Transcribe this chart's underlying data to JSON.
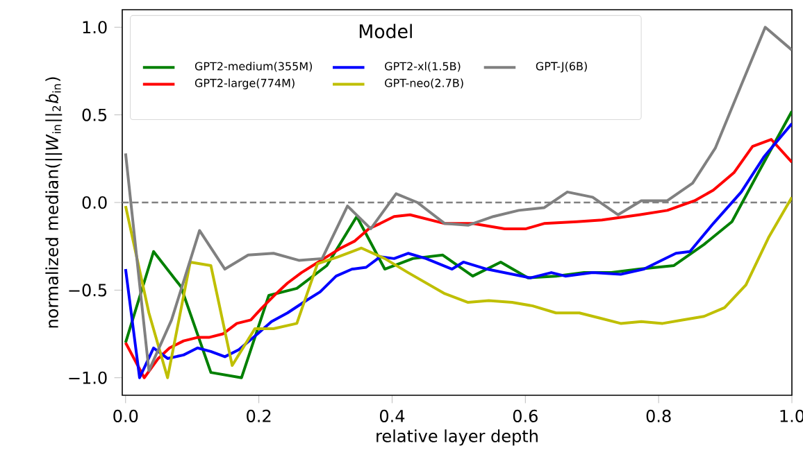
{
  "chart_data": {
    "type": "line",
    "xlabel": "relative layer depth",
    "ylabel": "normalized median(||*W*$_{in}$||$_{2}$*b*$_{in}$)",
    "legend_title": "Model",
    "legend": "top left",
    "grid": false,
    "line_style": "solid",
    "xlim": [
      -0.005,
      1.0
    ],
    "ylim": [
      -1.1,
      1.1
    ],
    "xticks": [
      {
        "value": 0,
        "label": "0.0"
      },
      {
        "value": 0.2,
        "label": "0.2"
      },
      {
        "value": 0.4,
        "label": "0.4"
      },
      {
        "value": 0.6,
        "label": "0.6"
      },
      {
        "value": 0.8,
        "label": "0.8"
      },
      {
        "value": 1.0,
        "label": "1.0"
      }
    ],
    "yticks": [
      {
        "value": -1.0,
        "label": "−1.0"
      },
      {
        "value": -0.5,
        "label": "−0.5"
      },
      {
        "value": 0,
        "label": "0.0"
      },
      {
        "value": 0.5,
        "label": "0.5"
      },
      {
        "value": 1.0,
        "label": "1.0"
      }
    ],
    "ref_lines": [
      {
        "axis": "y",
        "value": 0,
        "color": "#808080",
        "line_style": "dashed"
      }
    ],
    "series": [
      {
        "name": "GPT2-medium(355M)",
        "color": "#008000",
        "x": [
          0,
          0.042,
          0.083,
          0.128,
          0.174,
          0.215,
          0.257,
          0.302,
          0.347,
          0.389,
          0.431,
          0.476,
          0.521,
          0.563,
          0.604,
          0.646,
          0.688,
          0.729,
          0.771,
          0.823,
          0.868,
          0.91,
          0.951,
          1.0
        ],
        "values": [
          -0.8,
          -0.28,
          -0.48,
          -0.97,
          -1.0,
          -0.53,
          -0.49,
          -0.36,
          -0.08,
          -0.38,
          -0.32,
          -0.3,
          -0.42,
          -0.34,
          -0.43,
          -0.42,
          -0.4,
          -0.4,
          -0.38,
          -0.36,
          -0.24,
          -0.11,
          0.18,
          0.52
        ]
      },
      {
        "name": "GPT2-large(774M)",
        "color": "#ff0000",
        "x": [
          0,
          0.028,
          0.049,
          0.066,
          0.087,
          0.108,
          0.125,
          0.146,
          0.167,
          0.188,
          0.205,
          0.226,
          0.243,
          0.264,
          0.285,
          0.306,
          0.323,
          0.344,
          0.365,
          0.382,
          0.403,
          0.427,
          0.479,
          0.521,
          0.569,
          0.601,
          0.628,
          0.677,
          0.715,
          0.771,
          0.813,
          0.854,
          0.882,
          0.913,
          0.941,
          0.969,
          1.0
        ],
        "values": [
          -0.8,
          -1.0,
          -0.89,
          -0.83,
          -0.79,
          -0.77,
          -0.77,
          -0.75,
          -0.69,
          -0.67,
          -0.6,
          -0.52,
          -0.46,
          -0.4,
          -0.35,
          -0.3,
          -0.26,
          -0.22,
          -0.15,
          -0.12,
          -0.08,
          -0.07,
          -0.12,
          -0.12,
          -0.15,
          -0.15,
          -0.12,
          -0.11,
          -0.1,
          -0.07,
          -0.045,
          0.01,
          0.07,
          0.17,
          0.32,
          0.36,
          0.23
        ]
      },
      {
        "name": "GPT2-xl(1.5B)",
        "color": "#0000ff",
        "x": [
          0,
          0.021,
          0.042,
          0.063,
          0.087,
          0.108,
          0.128,
          0.149,
          0.17,
          0.198,
          0.219,
          0.243,
          0.271,
          0.292,
          0.316,
          0.34,
          0.361,
          0.382,
          0.403,
          0.424,
          0.451,
          0.49,
          0.507,
          0.542,
          0.608,
          0.639,
          0.66,
          0.701,
          0.743,
          0.778,
          0.799,
          0.826,
          0.847,
          0.882,
          0.924,
          0.958,
          1.0
        ],
        "values": [
          -0.38,
          -1.0,
          -0.83,
          -0.89,
          -0.87,
          -0.83,
          -0.85,
          -0.88,
          -0.84,
          -0.75,
          -0.68,
          -0.63,
          -0.56,
          -0.51,
          -0.42,
          -0.38,
          -0.37,
          -0.31,
          -0.32,
          -0.29,
          -0.32,
          -0.38,
          -0.34,
          -0.38,
          -0.43,
          -0.4,
          -0.42,
          -0.4,
          -0.41,
          -0.38,
          -0.34,
          -0.29,
          -0.28,
          -0.12,
          0.06,
          0.26,
          0.45
        ]
      },
      {
        "name": "GPT-neo(2.7B)",
        "color": "#bfbf00",
        "x": [
          0,
          0.035,
          0.063,
          0.097,
          0.128,
          0.16,
          0.194,
          0.222,
          0.257,
          0.288,
          0.319,
          0.354,
          0.389,
          0.424,
          0.479,
          0.514,
          0.545,
          0.58,
          0.611,
          0.646,
          0.681,
          0.712,
          0.743,
          0.774,
          0.806,
          0.837,
          0.868,
          0.899,
          0.931,
          0.965,
          1.0
        ],
        "values": [
          -0.02,
          -0.63,
          -1.0,
          -0.34,
          -0.36,
          -0.93,
          -0.72,
          -0.72,
          -0.69,
          -0.35,
          -0.31,
          -0.26,
          -0.32,
          -0.4,
          -0.52,
          -0.57,
          -0.56,
          -0.57,
          -0.59,
          -0.63,
          -0.63,
          -0.66,
          -0.69,
          -0.68,
          -0.69,
          -0.67,
          -0.65,
          -0.6,
          -0.47,
          -0.2,
          0.03
        ]
      },
      {
        "name": "GPT-J(6B)",
        "color": "#808080",
        "x": [
          0,
          0.035,
          0.069,
          0.111,
          0.149,
          0.184,
          0.222,
          0.26,
          0.295,
          0.333,
          0.368,
          0.406,
          0.438,
          0.479,
          0.514,
          0.552,
          0.59,
          0.628,
          0.663,
          0.701,
          0.739,
          0.774,
          0.813,
          0.851,
          0.885,
          0.924,
          0.96,
          1.0
        ],
        "values": [
          0.28,
          -0.96,
          -0.67,
          -0.16,
          -0.38,
          -0.3,
          -0.29,
          -0.33,
          -0.32,
          -0.02,
          -0.15,
          0.05,
          0.0,
          -0.12,
          -0.13,
          -0.08,
          -0.045,
          -0.03,
          0.06,
          0.03,
          -0.07,
          0.01,
          0.01,
          0.11,
          0.31,
          0.67,
          1.0,
          0.87
        ]
      }
    ]
  }
}
